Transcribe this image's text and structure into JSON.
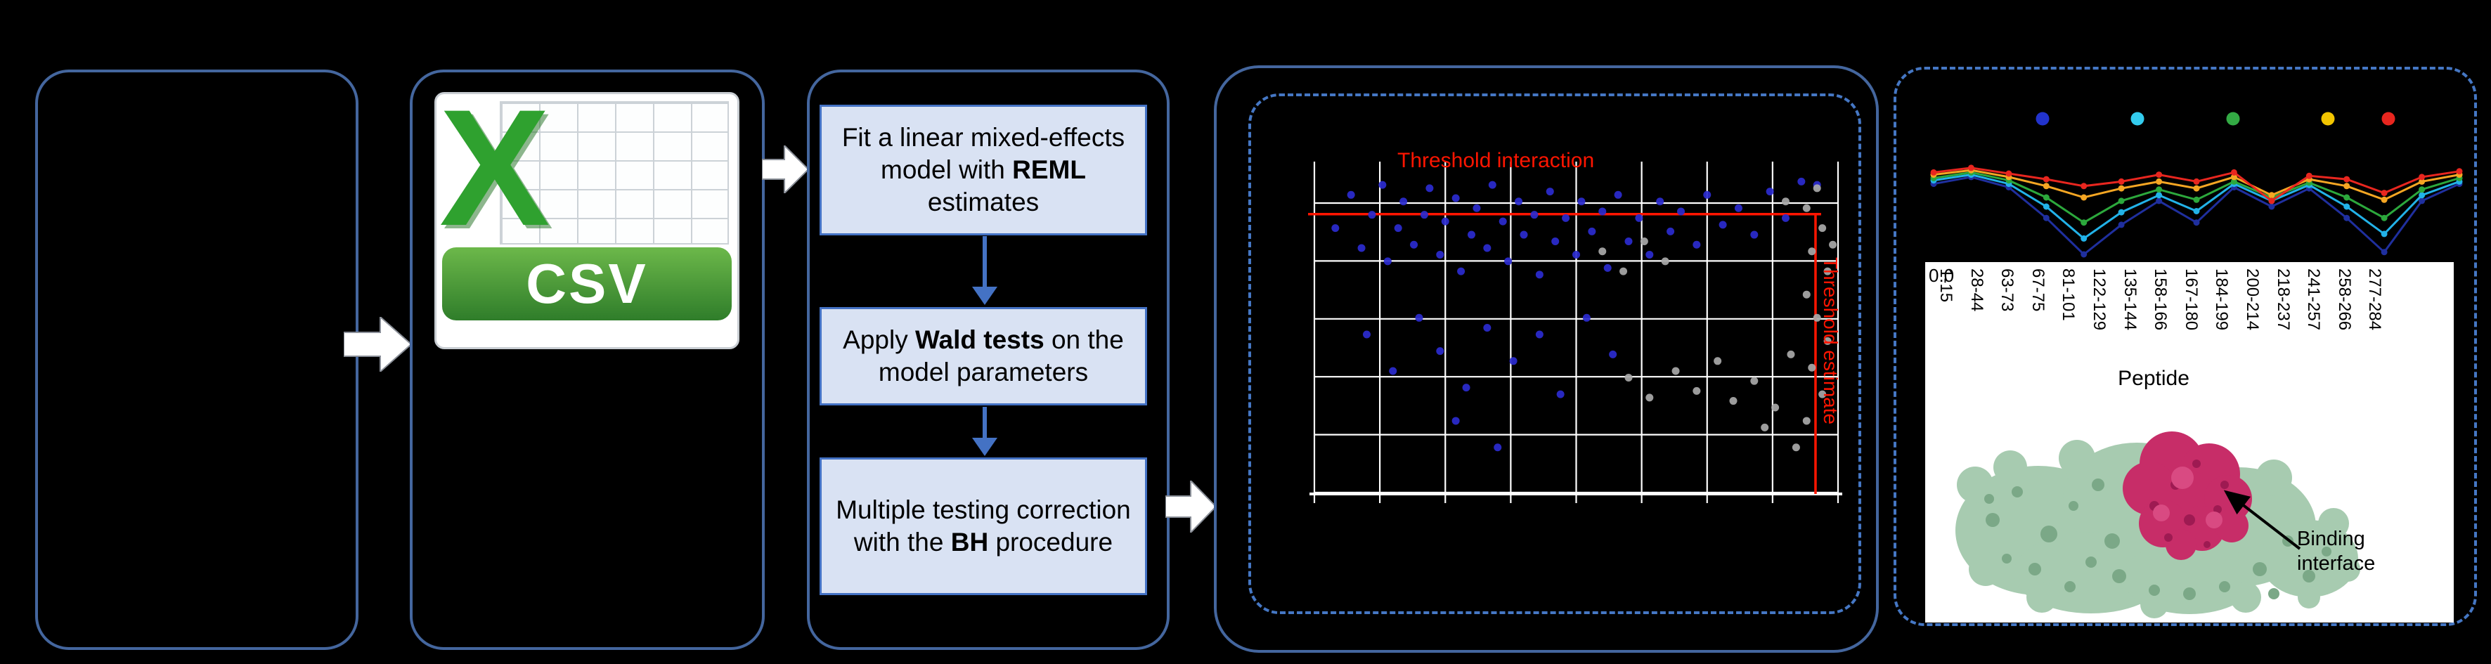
{
  "figure": {
    "csv_icon": {
      "x_label": "X",
      "banner_label": "CSV"
    },
    "pipeline": {
      "step1": {
        "pre": "Fit a linear mixed-effects model with ",
        "bold": "REML",
        "post": " estimates"
      },
      "step2": {
        "pre": "Apply ",
        "bold": "Wald tests",
        "post": " on the model parameters"
      },
      "step3": {
        "pre": "Multiple testing correction with the ",
        "bold": "BH",
        "post": " procedure"
      }
    },
    "results": {
      "binding_label": "Binding interface"
    }
  },
  "chart_data": [
    {
      "type": "scatter",
      "title": "",
      "grid": {
        "cols": 8,
        "rows": 5
      },
      "thresholds": {
        "y_frac": 0.158,
        "x_frac": 0.957,
        "interaction_label": "Threshold interaction",
        "estimate_label": "Threshold estimate"
      },
      "series": [
        {
          "name": "blue",
          "color": "#2b2bd0",
          "points": [
            [
              0.04,
              0.2
            ],
            [
              0.07,
              0.1
            ],
            [
              0.09,
              0.26
            ],
            [
              0.11,
              0.16
            ],
            [
              0.13,
              0.07
            ],
            [
              0.14,
              0.3
            ],
            [
              0.16,
              0.2
            ],
            [
              0.17,
              0.12
            ],
            [
              0.19,
              0.25
            ],
            [
              0.21,
              0.16
            ],
            [
              0.22,
              0.08
            ],
            [
              0.24,
              0.28
            ],
            [
              0.25,
              0.18
            ],
            [
              0.27,
              0.11
            ],
            [
              0.28,
              0.33
            ],
            [
              0.3,
              0.22
            ],
            [
              0.31,
              0.14
            ],
            [
              0.33,
              0.26
            ],
            [
              0.34,
              0.07
            ],
            [
              0.36,
              0.18
            ],
            [
              0.37,
              0.3
            ],
            [
              0.39,
              0.12
            ],
            [
              0.4,
              0.22
            ],
            [
              0.42,
              0.16
            ],
            [
              0.43,
              0.34
            ],
            [
              0.45,
              0.09
            ],
            [
              0.46,
              0.24
            ],
            [
              0.48,
              0.17
            ],
            [
              0.5,
              0.28
            ],
            [
              0.51,
              0.12
            ],
            [
              0.53,
              0.21
            ],
            [
              0.55,
              0.15
            ],
            [
              0.56,
              0.32
            ],
            [
              0.58,
              0.1
            ],
            [
              0.6,
              0.24
            ],
            [
              0.62,
              0.17
            ],
            [
              0.64,
              0.28
            ],
            [
              0.66,
              0.12
            ],
            [
              0.68,
              0.21
            ],
            [
              0.7,
              0.15
            ],
            [
              0.73,
              0.25
            ],
            [
              0.75,
              0.1
            ],
            [
              0.78,
              0.19
            ],
            [
              0.81,
              0.14
            ],
            [
              0.84,
              0.22
            ],
            [
              0.87,
              0.09
            ],
            [
              0.9,
              0.17
            ],
            [
              0.93,
              0.06
            ],
            [
              0.96,
              0.07
            ],
            [
              0.1,
              0.52
            ],
            [
              0.15,
              0.63
            ],
            [
              0.2,
              0.47
            ],
            [
              0.24,
              0.57
            ],
            [
              0.29,
              0.68
            ],
            [
              0.33,
              0.5
            ],
            [
              0.38,
              0.6
            ],
            [
              0.27,
              0.78
            ],
            [
              0.43,
              0.52
            ],
            [
              0.47,
              0.7
            ],
            [
              0.52,
              0.47
            ],
            [
              0.57,
              0.58
            ],
            [
              0.35,
              0.86
            ]
          ]
        },
        {
          "name": "grey",
          "color": "#a9a9a9",
          "points": [
            [
              0.55,
              0.27
            ],
            [
              0.59,
              0.33
            ],
            [
              0.63,
              0.24
            ],
            [
              0.67,
              0.3
            ],
            [
              0.6,
              0.65
            ],
            [
              0.64,
              0.71
            ],
            [
              0.69,
              0.63
            ],
            [
              0.73,
              0.69
            ],
            [
              0.77,
              0.6
            ],
            [
              0.8,
              0.72
            ],
            [
              0.84,
              0.66
            ],
            [
              0.88,
              0.74
            ],
            [
              0.91,
              0.58
            ],
            [
              0.86,
              0.8
            ],
            [
              0.92,
              0.86
            ],
            [
              0.96,
              0.08
            ],
            [
              0.94,
              0.14
            ],
            [
              0.97,
              0.2
            ],
            [
              0.95,
              0.27
            ],
            [
              0.98,
              0.33
            ],
            [
              0.94,
              0.4
            ],
            [
              0.96,
              0.47
            ],
            [
              0.98,
              0.54
            ],
            [
              0.95,
              0.62
            ],
            [
              0.97,
              0.7
            ],
            [
              0.94,
              0.78
            ],
            [
              0.9,
              0.12
            ],
            [
              0.99,
              0.25
            ]
          ]
        }
      ]
    },
    {
      "type": "line",
      "title": "",
      "xlabel": "Peptide",
      "y_tick_label": "0.0",
      "categories": [
        "1-15",
        "28-44",
        "63-73",
        "67-75",
        "81-101",
        "122-129",
        "135-144",
        "158-166",
        "167-180",
        "184-199",
        "200-214",
        "218-237",
        "241-257",
        "258-266",
        "277-284"
      ],
      "legend_colors": [
        "#2233cc",
        "#33ccee",
        "#33aa44",
        "#f2c500",
        "#e8261f"
      ],
      "series": [
        {
          "name": "dark-blue",
          "color": "#1f2f9e",
          "values": [
            0.7,
            0.76,
            0.67,
            0.4,
            0.08,
            0.34,
            0.55,
            0.36,
            0.67,
            0.5,
            0.66,
            0.4,
            0.1,
            0.55,
            0.7
          ]
        },
        {
          "name": "cyan",
          "color": "#22b2e8",
          "values": [
            0.73,
            0.78,
            0.7,
            0.5,
            0.22,
            0.45,
            0.6,
            0.46,
            0.7,
            0.55,
            0.69,
            0.5,
            0.26,
            0.6,
            0.72
          ]
        },
        {
          "name": "green",
          "color": "#2ca83c",
          "values": [
            0.75,
            0.8,
            0.73,
            0.58,
            0.36,
            0.55,
            0.65,
            0.56,
            0.72,
            0.58,
            0.71,
            0.58,
            0.4,
            0.65,
            0.75
          ]
        },
        {
          "name": "orange",
          "color": "#f5a623",
          "values": [
            0.78,
            0.82,
            0.76,
            0.68,
            0.58,
            0.66,
            0.72,
            0.66,
            0.76,
            0.6,
            0.74,
            0.68,
            0.56,
            0.72,
            0.78
          ]
        },
        {
          "name": "red",
          "color": "#e8261f",
          "values": [
            0.8,
            0.84,
            0.79,
            0.74,
            0.68,
            0.72,
            0.78,
            0.72,
            0.8,
            0.55,
            0.77,
            0.74,
            0.62,
            0.76,
            0.81
          ]
        }
      ]
    }
  ]
}
